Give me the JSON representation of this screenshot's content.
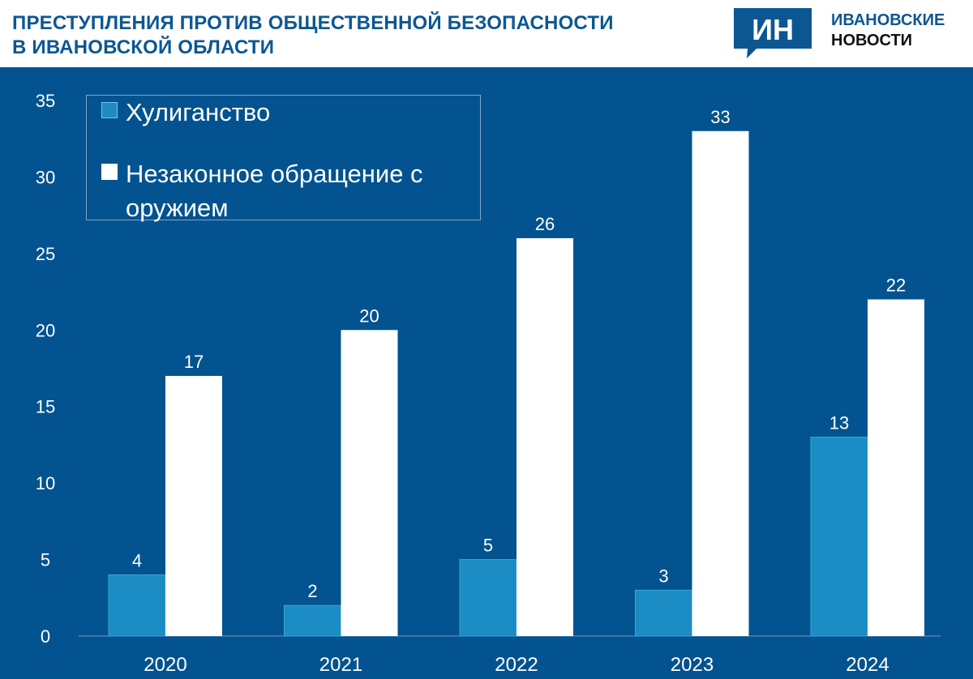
{
  "header": {
    "title_line1": "ПРЕСТУПЛЕНИЯ ПРОТИВ ОБЩЕСТВЕННОЙ БЕЗОПАСНОСТИ",
    "title_line2": "В ИВАНОВСКОЙ ОБЛАСТИ"
  },
  "logo": {
    "mark": "ИН",
    "name_line1": "ИВАНОВСКИЕ",
    "name_line2": "НОВОСТИ"
  },
  "colors": {
    "brand": "#0c5792",
    "background": "#02538f",
    "series_1": "#1b8cc4",
    "series_2": "#ffffff"
  },
  "chart_data": {
    "type": "bar",
    "title": "ПРЕСТУПЛЕНИЯ ПРОТИВ ОБЩЕСТВЕННОЙ БЕЗОПАСНОСТИ В ИВАНОВСКОЙ ОБЛАСТИ",
    "categories": [
      "2020",
      "2021",
      "2022",
      "2023",
      "2024"
    ],
    "series": [
      {
        "name": "Хулиганство",
        "values": [
          4,
          2,
          5,
          3,
          13
        ]
      },
      {
        "name": "Незаконное обращение с оружием",
        "values": [
          17,
          20,
          26,
          33,
          22
        ]
      }
    ],
    "ylim": [
      0,
      35
    ],
    "yticks": [
      0,
      5,
      10,
      15,
      20,
      25,
      30,
      35
    ],
    "xlabel": "",
    "ylabel": "",
    "grid": false,
    "legend_position": "top-left"
  }
}
